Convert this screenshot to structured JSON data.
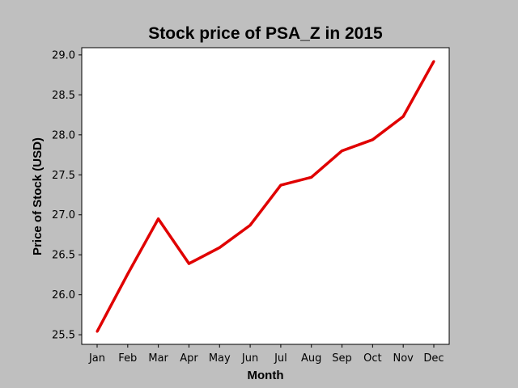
{
  "chart_data": {
    "type": "line",
    "title": "Stock price of PSA_Z in 2015",
    "xlabel": "Month",
    "ylabel": "Price of Stock (USD)",
    "categories": [
      "Jan",
      "Feb",
      "Mar",
      "Apr",
      "May",
      "Jun",
      "Jul",
      "Aug",
      "Sep",
      "Oct",
      "Nov",
      "Dec"
    ],
    "series": [
      {
        "values": [
          25.54,
          26.26,
          26.95,
          26.39,
          26.59,
          26.87,
          27.37,
          27.47,
          27.8,
          27.94,
          28.23,
          28.92
        ],
        "color": "#e00000"
      }
    ],
    "yticks": [
      "25.5",
      "26.0",
      "26.5",
      "27.0",
      "27.5",
      "28.0",
      "28.5",
      "29.0"
    ],
    "ylim": [
      25.38,
      29.09
    ],
    "grid": false,
    "legend": "none",
    "colors": {
      "figure_background": "#bfbfbf",
      "plot_background": "#ffffff",
      "line": "#e00000"
    }
  }
}
